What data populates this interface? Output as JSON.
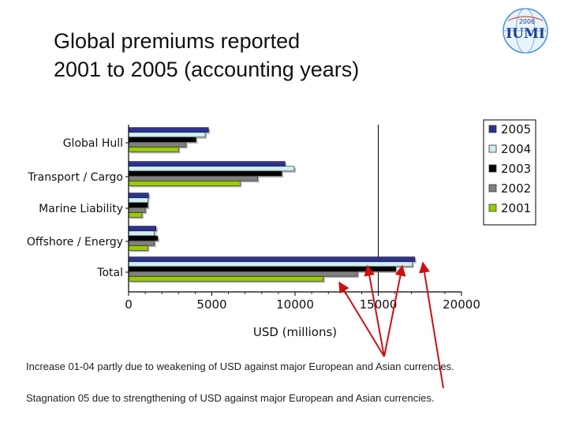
{
  "slide": {
    "title_line1": "Global premiums reported",
    "title_line2": "2001 to 2005 (accounting years)",
    "logo": {
      "year": "2006",
      "text": "IUMI",
      "icon": "iumi-globe-logo"
    },
    "notes": [
      "Increase 01-04 partly due to weakening of USD against major European and Asian currencies.",
      "Stagnation 05 due to strengthening of USD against major European and Asian currencies."
    ],
    "arrow_color": "#cc1111"
  },
  "chart_data": {
    "type": "bar",
    "orientation": "horizontal",
    "title": "",
    "xlabel": "USD (millions)",
    "ylabel": "",
    "xlim": [
      0,
      20000
    ],
    "xticks": [
      0,
      5000,
      10000,
      15000,
      20000
    ],
    "categories": [
      "Global Hull",
      "Transport  / Cargo",
      "Marine Liability",
      "Offshore / Energy",
      "Total"
    ],
    "series": [
      {
        "name": "2005",
        "color": "#2e3192",
        "values": [
          4800,
          9400,
          1200,
          1650,
          17200
        ]
      },
      {
        "name": "2004",
        "color": "#cdeef2",
        "values": [
          4600,
          9950,
          1150,
          1550,
          17050
        ]
      },
      {
        "name": "2003",
        "color": "#000000",
        "values": [
          4050,
          9200,
          1150,
          1750,
          16050
        ]
      },
      {
        "name": "2002",
        "color": "#808080",
        "values": [
          3450,
          7750,
          1000,
          1550,
          13750
        ]
      },
      {
        "name": "2001",
        "color": "#99cc00",
        "values": [
          3000,
          6700,
          800,
          1150,
          11700
        ]
      }
    ],
    "grid": false,
    "reference_line": 15000,
    "legend_position": "right"
  }
}
